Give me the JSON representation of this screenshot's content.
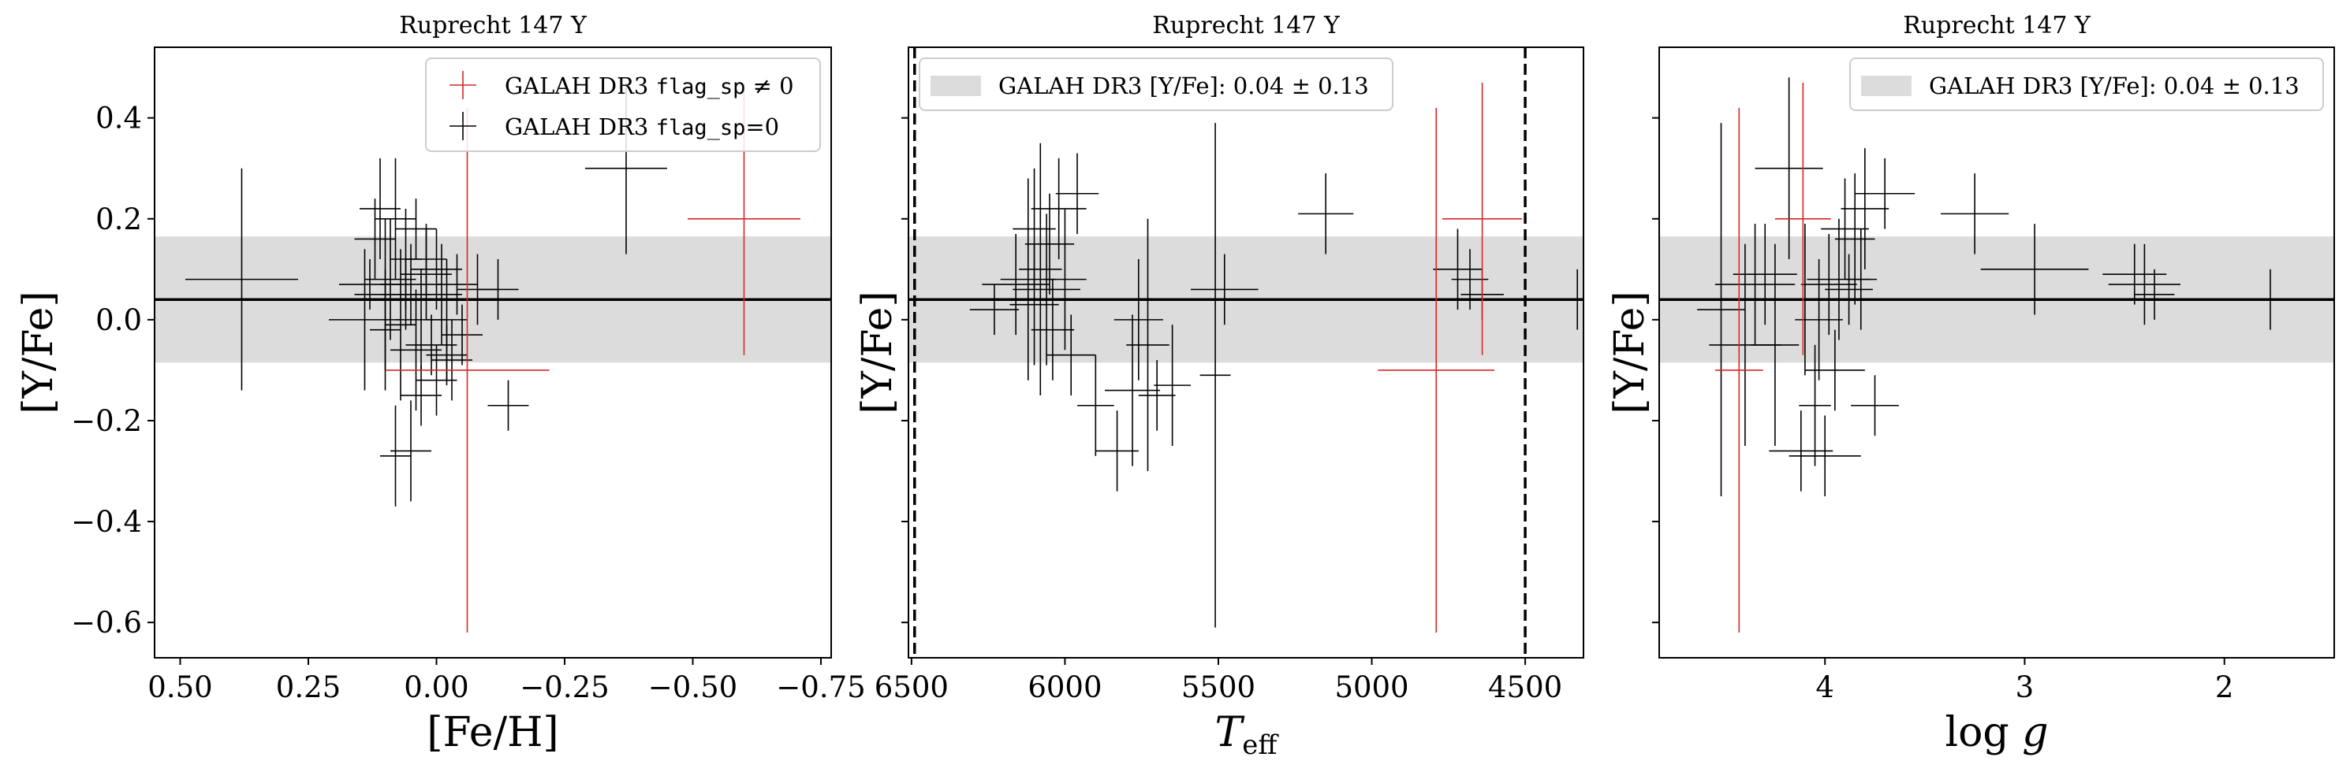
{
  "colors": {
    "black": "#000000",
    "red": "#d62728",
    "band": "#dcdcdc"
  },
  "chart_data": [
    {
      "type": "scatter",
      "title": "Ruprecht 147 Y",
      "xlabel": "[Fe/H]",
      "ylabel": "[Y/Fe]",
      "xlim": [
        0.55,
        -0.77
      ],
      "ylim": [
        -0.67,
        0.54
      ],
      "x_ticks": [
        0.5,
        0.25,
        0.0,
        -0.25,
        -0.5,
        -0.75
      ],
      "x_tick_labels": [
        "0.50",
        "0.25",
        "0.00",
        "−0.25",
        "−0.50",
        "−0.75"
      ],
      "y_ticks": [
        0.4,
        0.2,
        0.0,
        -0.2,
        -0.4,
        -0.6
      ],
      "y_tick_labels": [
        "0.4",
        "0.2",
        "0.0",
        "−0.2",
        "−0.4",
        "−0.6"
      ],
      "band": {
        "center": 0.04,
        "low": -0.085,
        "high": 0.165
      },
      "legend": {
        "placement": "upper right",
        "entries": [
          {
            "prefix": "GALAH DR3 ",
            "code": "flag_sp",
            "suffix": " ≠ 0",
            "marker": "cross",
            "color": "#d62728"
          },
          {
            "prefix": "GALAH DR3 ",
            "code": "flag_sp",
            "suffix": "=0",
            "marker": "cross",
            "color": "#000000"
          }
        ]
      },
      "series": [
        {
          "flag": "nonzero",
          "color": "#d62728",
          "points": [
            {
              "x": -0.06,
              "y": -0.1,
              "xerr": 0.16,
              "yerr": 0.52
            },
            {
              "x": -0.6,
              "y": 0.2,
              "xerr": 0.11,
              "yerr": 0.27
            }
          ]
        },
        {
          "flag": "zero",
          "color": "#000000",
          "points": [
            {
              "x": 0.38,
              "y": 0.08,
              "xerr": 0.11,
              "yerr": 0.22
            },
            {
              "x": -0.37,
              "y": 0.3,
              "xerr": 0.08,
              "yerr": 0.17
            },
            {
              "x": -0.14,
              "y": -0.17,
              "xerr": 0.04,
              "yerr": 0.05
            },
            {
              "x": -0.12,
              "y": 0.06,
              "xerr": 0.04,
              "yerr": 0.06
            },
            {
              "x": 0.14,
              "y": 0.0,
              "xerr": 0.07,
              "yerr": 0.14
            },
            {
              "x": 0.12,
              "y": 0.16,
              "xerr": 0.04,
              "yerr": 0.08
            },
            {
              "x": 0.11,
              "y": 0.22,
              "xerr": 0.04,
              "yerr": 0.1
            },
            {
              "x": 0.1,
              "y": 0.05,
              "xerr": 0.06,
              "yerr": 0.15
            },
            {
              "x": 0.09,
              "y": 0.08,
              "xerr": 0.05,
              "yerr": 0.12
            },
            {
              "x": 0.08,
              "y": 0.2,
              "xerr": 0.04,
              "yerr": 0.12
            },
            {
              "x": 0.07,
              "y": -0.01,
              "xerr": 0.03,
              "yerr": 0.15
            },
            {
              "x": 0.06,
              "y": 0.12,
              "xerr": 0.03,
              "yerr": 0.1
            },
            {
              "x": 0.05,
              "y": 0.07,
              "xerr": 0.06,
              "yerr": 0.08
            },
            {
              "x": 0.04,
              "y": -0.06,
              "xerr": 0.05,
              "yerr": 0.12
            },
            {
              "x": 0.03,
              "y": 0.0,
              "xerr": 0.05,
              "yerr": 0.1
            },
            {
              "x": 0.02,
              "y": 0.09,
              "xerr": 0.05,
              "yerr": 0.09
            },
            {
              "x": 0.01,
              "y": -0.05,
              "xerr": 0.05,
              "yerr": 0.06
            },
            {
              "x": 0.0,
              "y": 0.1,
              "xerr": 0.05,
              "yerr": 0.08
            },
            {
              "x": -0.01,
              "y": 0.05,
              "xerr": 0.04,
              "yerr": 0.1
            },
            {
              "x": -0.02,
              "y": 0.0,
              "xerr": 0.04,
              "yerr": 0.12
            },
            {
              "x": -0.03,
              "y": -0.08,
              "xerr": 0.04,
              "yerr": 0.08
            },
            {
              "x": -0.04,
              "y": 0.07,
              "xerr": 0.04,
              "yerr": 0.06
            },
            {
              "x": -0.05,
              "y": -0.03,
              "xerr": 0.04,
              "yerr": 0.06
            },
            {
              "x": 0.0,
              "y": -0.12,
              "xerr": 0.04,
              "yerr": 0.07
            },
            {
              "x": 0.05,
              "y": -0.26,
              "xerr": 0.04,
              "yerr": 0.1
            },
            {
              "x": 0.08,
              "y": -0.27,
              "xerr": 0.03,
              "yerr": 0.1
            },
            {
              "x": 0.03,
              "y": -0.15,
              "xerr": 0.04,
              "yerr": 0.06
            },
            {
              "x": 0.02,
              "y": 0.12,
              "xerr": 0.04,
              "yerr": 0.07
            },
            {
              "x": 0.04,
              "y": 0.18,
              "xerr": 0.04,
              "yerr": 0.06
            },
            {
              "x": 0.1,
              "y": -0.02,
              "xerr": 0.03,
              "yerr": 0.12
            },
            {
              "x": -0.08,
              "y": 0.06,
              "xerr": 0.04,
              "yerr": 0.07
            },
            {
              "x": 0.13,
              "y": 0.07,
              "xerr": 0.06,
              "yerr": 0.05
            },
            {
              "x": 0.06,
              "y": 0.05,
              "xerr": 0.05,
              "yerr": 0.07
            },
            {
              "x": -0.02,
              "y": -0.07,
              "xerr": 0.04,
              "yerr": 0.06
            }
          ]
        }
      ]
    },
    {
      "type": "scatter",
      "title": "Ruprecht 147 Y",
      "xlabel": "T_eff",
      "ylabel": "[Y/Fe]",
      "xlim": [
        6510,
        4310
      ],
      "ylim": [
        -0.67,
        0.54
      ],
      "x_ticks": [
        6500,
        6000,
        5500,
        5000,
        4500
      ],
      "x_tick_labels": [
        "6500",
        "6000",
        "5500",
        "5000",
        "4500"
      ],
      "y_ticks": [
        0.4,
        0.2,
        0.0,
        -0.2,
        -0.4,
        -0.6
      ],
      "y_tick_labels": [
        "",
        "",
        "",
        "",
        "",
        ""
      ],
      "vlines": [
        6490,
        4500
      ],
      "band": {
        "center": 0.04,
        "low": -0.085,
        "high": 0.165
      },
      "legend": {
        "placement": "upper left",
        "entries": [
          {
            "prefix": "GALAH DR3 [Y/Fe]: 0.04 ± 0.13",
            "code": "",
            "suffix": "",
            "marker": "patch",
            "color": "#dcdcdc"
          }
        ]
      },
      "series": [
        {
          "flag": "nonzero",
          "color": "#d62728",
          "points": [
            {
              "x": 4790,
              "y": -0.1,
              "xerr": 190,
              "yerr": 0.52
            },
            {
              "x": 4640,
              "y": 0.2,
              "xerr": 130,
              "yerr": 0.27
            }
          ]
        },
        {
          "flag": "zero",
          "color": "#000000",
          "points": [
            {
              "x": 6230,
              "y": 0.02,
              "xerr": 80,
              "yerr": 0.05
            },
            {
              "x": 6160,
              "y": 0.07,
              "xerr": 110,
              "yerr": 0.1
            },
            {
              "x": 6120,
              "y": 0.08,
              "xerr": 90,
              "yerr": 0.2
            },
            {
              "x": 6100,
              "y": 0.03,
              "xerr": 80,
              "yerr": 0.12
            },
            {
              "x": 6080,
              "y": 0.1,
              "xerr": 70,
              "yerr": 0.25
            },
            {
              "x": 6060,
              "y": 0.06,
              "xerr": 110,
              "yerr": 0.15
            },
            {
              "x": 6040,
              "y": -0.02,
              "xerr": 70,
              "yerr": 0.1
            },
            {
              "x": 6020,
              "y": 0.22,
              "xerr": 90,
              "yerr": 0.1
            },
            {
              "x": 6000,
              "y": 0.08,
              "xerr": 70,
              "yerr": 0.14
            },
            {
              "x": 5980,
              "y": -0.07,
              "xerr": 80,
              "yerr": 0.08
            },
            {
              "x": 5960,
              "y": 0.25,
              "xerr": 70,
              "yerr": 0.08
            },
            {
              "x": 6100,
              "y": 0.18,
              "xerr": 70,
              "yerr": 0.12
            },
            {
              "x": 6050,
              "y": 0.15,
              "xerr": 80,
              "yerr": 0.1
            },
            {
              "x": 5900,
              "y": -0.17,
              "xerr": 60,
              "yerr": 0.1
            },
            {
              "x": 5830,
              "y": -0.26,
              "xerr": 70,
              "yerr": 0.08
            },
            {
              "x": 5780,
              "y": -0.14,
              "xerr": 90,
              "yerr": 0.15
            },
            {
              "x": 5760,
              "y": 0.0,
              "xerr": 80,
              "yerr": 0.12
            },
            {
              "x": 5730,
              "y": -0.05,
              "xerr": 70,
              "yerr": 0.25
            },
            {
              "x": 5700,
              "y": -0.15,
              "xerr": 60,
              "yerr": 0.07
            },
            {
              "x": 5650,
              "y": -0.13,
              "xerr": 60,
              "yerr": 0.12
            },
            {
              "x": 5510,
              "y": -0.11,
              "xerr": 50,
              "yerr": 0.5
            },
            {
              "x": 5480,
              "y": 0.06,
              "xerr": 110,
              "yerr": 0.07
            },
            {
              "x": 5150,
              "y": 0.21,
              "xerr": 90,
              "yerr": 0.08
            },
            {
              "x": 4720,
              "y": 0.1,
              "xerr": 80,
              "yerr": 0.08
            },
            {
              "x": 4680,
              "y": 0.08,
              "xerr": 60,
              "yerr": 0.06
            },
            {
              "x": 4640,
              "y": 0.05,
              "xerr": 70,
              "yerr": 0.05
            },
            {
              "x": 4330,
              "y": 0.04,
              "xerr": 40,
              "yerr": 0.06
            }
          ]
        }
      ]
    },
    {
      "type": "scatter",
      "title": "Ruprecht 147 Y",
      "xlabel": "log g",
      "ylabel": "[Y/Fe]",
      "xlim": [
        4.83,
        1.45
      ],
      "ylim": [
        -0.67,
        0.54
      ],
      "x_ticks": [
        4,
        3,
        2
      ],
      "x_tick_labels": [
        "4",
        "3",
        "2"
      ],
      "y_ticks": [
        0.4,
        0.2,
        0.0,
        -0.2,
        -0.4,
        -0.6
      ],
      "y_tick_labels": [
        "",
        "",
        "",
        "",
        "",
        ""
      ],
      "band": {
        "center": 0.04,
        "low": -0.085,
        "high": 0.165
      },
      "legend": {
        "placement": "upper right",
        "entries": [
          {
            "prefix": "GALAH DR3 [Y/Fe]: 0.04 ± 0.13",
            "code": "",
            "suffix": "",
            "marker": "patch",
            "color": "#dcdcdc"
          }
        ]
      },
      "series": [
        {
          "flag": "nonzero",
          "color": "#d62728",
          "points": [
            {
              "x": 4.43,
              "y": -0.1,
              "xerr": 0.12,
              "yerr": 0.52
            },
            {
              "x": 4.11,
              "y": 0.2,
              "xerr": 0.14,
              "yerr": 0.27
            }
          ]
        },
        {
          "flag": "zero",
          "color": "#000000",
          "points": [
            {
              "x": 4.52,
              "y": 0.02,
              "xerr": 0.12,
              "yerr": 0.37
            },
            {
              "x": 4.4,
              "y": -0.05,
              "xerr": 0.18,
              "yerr": 0.2
            },
            {
              "x": 4.35,
              "y": 0.07,
              "xerr": 0.2,
              "yerr": 0.12
            },
            {
              "x": 4.3,
              "y": 0.09,
              "xerr": 0.16,
              "yerr": 0.1
            },
            {
              "x": 4.25,
              "y": -0.05,
              "xerr": 0.12,
              "yerr": 0.2
            },
            {
              "x": 4.18,
              "y": 0.3,
              "xerr": 0.17,
              "yerr": 0.18
            },
            {
              "x": 4.12,
              "y": -0.26,
              "xerr": 0.16,
              "yerr": 0.08
            },
            {
              "x": 4.1,
              "y": 0.04,
              "xerr": 0.14,
              "yerr": 0.15
            },
            {
              "x": 4.05,
              "y": -0.17,
              "xerr": 0.08,
              "yerr": 0.12
            },
            {
              "x": 4.03,
              "y": 0.0,
              "xerr": 0.12,
              "yerr": 0.12
            },
            {
              "x": 4.0,
              "y": -0.27,
              "xerr": 0.18,
              "yerr": 0.08
            },
            {
              "x": 3.98,
              "y": 0.07,
              "xerr": 0.14,
              "yerr": 0.1
            },
            {
              "x": 3.95,
              "y": -0.1,
              "xerr": 0.15,
              "yerr": 0.08
            },
            {
              "x": 3.93,
              "y": 0.08,
              "xerr": 0.16,
              "yerr": 0.12
            },
            {
              "x": 3.9,
              "y": 0.18,
              "xerr": 0.12,
              "yerr": 0.1
            },
            {
              "x": 3.88,
              "y": 0.06,
              "xerr": 0.12,
              "yerr": 0.07
            },
            {
              "x": 3.85,
              "y": 0.16,
              "xerr": 0.1,
              "yerr": 0.13
            },
            {
              "x": 3.8,
              "y": 0.22,
              "xerr": 0.12,
              "yerr": 0.12
            },
            {
              "x": 3.75,
              "y": -0.17,
              "xerr": 0.12,
              "yerr": 0.06
            },
            {
              "x": 3.7,
              "y": 0.25,
              "xerr": 0.15,
              "yerr": 0.07
            },
            {
              "x": 3.82,
              "y": 0.08,
              "xerr": 0.08,
              "yerr": 0.1
            },
            {
              "x": 3.25,
              "y": 0.21,
              "xerr": 0.17,
              "yerr": 0.08
            },
            {
              "x": 2.95,
              "y": 0.1,
              "xerr": 0.27,
              "yerr": 0.09
            },
            {
              "x": 2.45,
              "y": 0.09,
              "xerr": 0.16,
              "yerr": 0.06
            },
            {
              "x": 2.4,
              "y": 0.07,
              "xerr": 0.18,
              "yerr": 0.08
            },
            {
              "x": 2.35,
              "y": 0.05,
              "xerr": 0.1,
              "yerr": 0.05
            },
            {
              "x": 1.77,
              "y": 0.04,
              "xerr": 0.18,
              "yerr": 0.06
            }
          ]
        }
      ]
    }
  ]
}
